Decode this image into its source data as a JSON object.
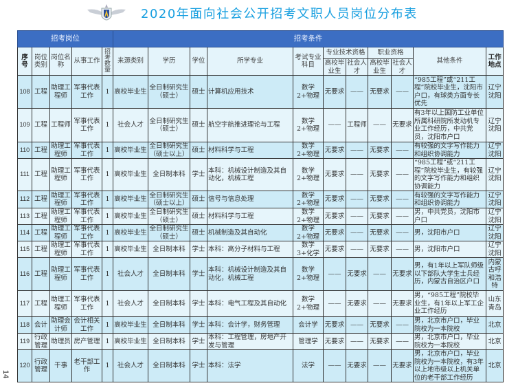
{
  "title": "2020年面向社会公开招考文职人员岗位分布表",
  "page_number": "14",
  "logo": "air-force-wings-emblem",
  "colors": {
    "title": "#1aa0e0",
    "group_header": "#3c6ec3",
    "row_dark": "#cdebf7",
    "row_light": "#e6f5fb"
  },
  "groups": {
    "position": "招考岗位",
    "conditions": "招考条件"
  },
  "headers": {
    "seq": "序号",
    "category": "岗位类别",
    "name": "岗位名称",
    "work": "从事工作",
    "count": "招考数量",
    "source": "来源类别",
    "education": "学历",
    "degree": "学位",
    "major": "所学专业",
    "exam": "考试专业科目",
    "tech_qual": "专业技术资格",
    "job_qual": "职业资格",
    "grad": "高校毕业生",
    "social": "社会人才",
    "other": "其他条件",
    "location": "工作地点"
  },
  "rows": [
    [
      "108",
      "工程",
      "助理工程师",
      "军事代表工作",
      "1",
      "高校毕业生",
      "全日制研究生（硕士）",
      "硕士",
      "计算机应用技术",
      "数学2+物理",
      "无要求",
      "——",
      "无要求",
      "——",
      "“985工程”或“211工程”院校毕业生，沈阳市户口，有球类方面专长优先",
      "辽宁沈阳"
    ],
    [
      "109",
      "工程",
      "工程师",
      "军事代表工作",
      "1",
      "社会人才",
      "全日制研究生（硕士）",
      "硕士",
      "航空宇航推进理论与工程",
      "数学2+物理",
      "——",
      "工程师",
      "——",
      "无要求",
      "有3年以上国防工业单位所属科研院所发动机专业工作经历，中共党员，沈阳市户口",
      "辽宁沈阳"
    ],
    [
      "110",
      "工程",
      "助理工程师",
      "军事代表工作",
      "1",
      "高校毕业生",
      "全日制研究生（硕士以上）",
      "硕士",
      "材料科学与工程",
      "数学2+物理",
      "无要求",
      "——",
      "无要求",
      "——",
      "有较强的文字写作能力和组织协调能力",
      "辽宁沈阳"
    ],
    [
      "111",
      "工程",
      "助理工程师",
      "军事代表工作",
      "1",
      "高校毕业生",
      "全日制本科",
      "学士",
      "本科：机械设计制造及其自动化，机械工程",
      "数学2+物理",
      "无要求",
      "——",
      "无要求",
      "——",
      "“985工程”或“211工程”院校毕业生，有较强的文字写作能力和组织协调能力",
      "辽宁沈阳"
    ],
    [
      "112",
      "工程",
      "助理工程师",
      "军事代表工作",
      "1",
      "高校毕业生",
      "全日制研究生（硕士以上）",
      "硕士",
      "信号与信息处理",
      "数学2+物理",
      "无要求",
      "——",
      "无要求",
      "——",
      "有较强的文字写作能力和组织协调能力",
      "辽宁沈阳"
    ],
    [
      "113",
      "工程",
      "助理工程师",
      "军事代表工作",
      "1",
      "高校毕业生",
      "全日制研究生（硕士）",
      "硕士",
      "材料科学与工程",
      "数学2+物理",
      "无要求",
      "——",
      "无要求",
      "——",
      "男，中共党员，沈阳市户口",
      "辽宁沈阳"
    ],
    [
      "114",
      "工程",
      "助理工程师",
      "军事代表工作",
      "1",
      "高校毕业生",
      "全日制研究生（硕士）",
      "硕士",
      "机械制造及其自动化",
      "数学2+物理",
      "无要求",
      "——",
      "无要求",
      "——",
      "男，沈阳市户口",
      "辽宁沈阳"
    ],
    [
      "115",
      "工程",
      "助理工程师",
      "军事代表工作",
      "1",
      "高校毕业生",
      "全日制本科",
      "学士",
      "本科：高分子材料与工程",
      "数学3+化学",
      "无要求",
      "——",
      "无要求",
      "——",
      "男，沈阳市户口",
      "辽宁沈阳"
    ],
    [
      "116",
      "工程",
      "助理工程师",
      "军事代表工作",
      "1",
      "社会人才",
      "全日制本科",
      "学士",
      "本科：机械设计制造及其自动化，机械工程",
      "数学2+物理",
      "——",
      "无要求",
      "——",
      "无要求",
      "男，有1年以上军队师级以下部队大学生士兵经历，内蒙古自治区户口",
      "内蒙古呼和浩特"
    ],
    [
      "117",
      "工程",
      "助理工程师",
      "军事代表工作",
      "1",
      "社会人才",
      "全日制本科",
      "学士",
      "本科：电气工程及其自动化",
      "数学2+物理",
      "——",
      "无要求",
      "——",
      "无要求",
      "男，“985工程”院校毕业生，有1年以上军工企业工作经历",
      "山东青岛"
    ],
    [
      "118",
      "会计",
      "助理会计师",
      "会计相关工作",
      "1",
      "高校毕业生",
      "全日制本科",
      "学士",
      "本科：会计学，财务管理",
      "会计学",
      "无要求",
      "——",
      "无要求",
      "——",
      "男，北京市户口，毕业院校为一本院校",
      "北京"
    ],
    [
      "119",
      "行政管理",
      "助理员",
      "房产管理",
      "1",
      "高校毕业生",
      "全日制本科",
      "学士",
      "本科：工程管理，房地产开发与管理",
      "管理学",
      "无要求",
      "——",
      "无要求",
      "——",
      "男，北京市户口，毕业院校为一本院校",
      "北京"
    ],
    [
      "120",
      "行政管理",
      "干事",
      "老干部工作",
      "1",
      "社会人才",
      "全日制本科",
      "学士",
      "本科：法学",
      "法学",
      "——",
      "无要求",
      "——",
      "无要求",
      "男，北京市户口，毕业院校为一本院校，有3年以上地市级以上机关单位的老干部工作经历",
      "北京"
    ]
  ]
}
